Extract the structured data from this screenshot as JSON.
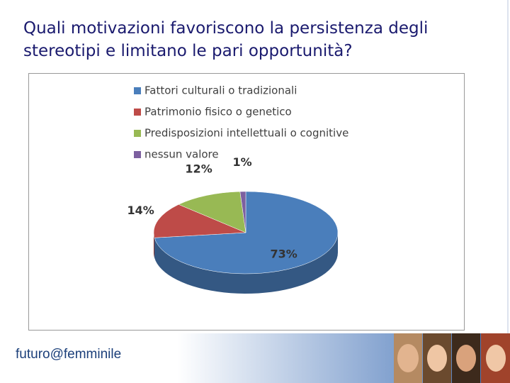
{
  "chart_data": {
    "type": "pie",
    "title": "Quali motivazioni favoriscono la persistenza degli stereotipi e limitano le pari opportunità?",
    "categories": [
      "Fattori culturali o tradizionali",
      "Patrimonio fisico o genetico",
      "Predisposizioni intellettuali o cognitive",
      "nessun valore"
    ],
    "values": [
      73,
      14,
      12,
      1
    ],
    "value_labels": [
      "73%",
      "14%",
      "12%",
      "1%"
    ],
    "colors": [
      "#4a7ebb",
      "#be4b48",
      "#98b954",
      "#7d60a0"
    ],
    "legend": "top"
  },
  "footer": {
    "logo": "futuro@femminile"
  }
}
